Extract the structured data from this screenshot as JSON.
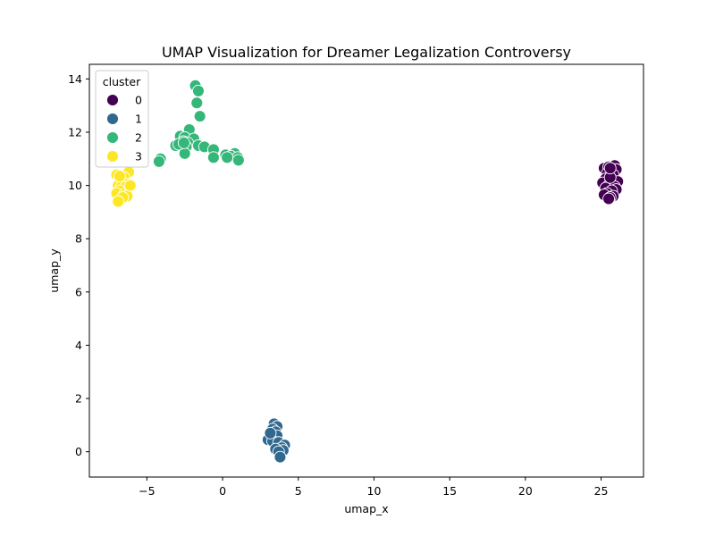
{
  "chart_data": {
    "type": "scatter",
    "title": "UMAP Visualization for Dreamer Legalization Controversy",
    "xlabel": "umap_x",
    "ylabel": "umap_y",
    "xlim": [
      -8.8,
      27.8
    ],
    "ylim": [
      -0.95,
      14.55
    ],
    "xticks": [
      -5,
      0,
      5,
      10,
      15,
      20,
      25
    ],
    "yticks": [
      0,
      2,
      4,
      6,
      8,
      10,
      12,
      14
    ],
    "xtick_labels": [
      "−5",
      "0",
      "5",
      "10",
      "15",
      "20",
      "25"
    ],
    "ytick_labels": [
      "0",
      "2",
      "4",
      "6",
      "8",
      "10",
      "12",
      "14"
    ],
    "grid": false,
    "legend": {
      "title": "cluster",
      "placement": "top-left"
    },
    "series": [
      {
        "name": "0",
        "color": "#440154",
        "points": [
          [
            25.2,
            10.65
          ],
          [
            25.5,
            10.7
          ],
          [
            25.9,
            10.75
          ],
          [
            25.7,
            10.55
          ],
          [
            26.0,
            10.6
          ],
          [
            25.4,
            10.45
          ],
          [
            25.8,
            10.4
          ],
          [
            25.3,
            10.25
          ],
          [
            25.6,
            10.2
          ],
          [
            26.1,
            10.15
          ],
          [
            25.1,
            10.1
          ],
          [
            25.5,
            10.0
          ],
          [
            25.9,
            9.95
          ],
          [
            25.3,
            9.9
          ],
          [
            26.0,
            9.85
          ],
          [
            25.7,
            9.8
          ],
          [
            25.4,
            9.7
          ],
          [
            25.2,
            9.65
          ],
          [
            25.8,
            9.6
          ],
          [
            25.6,
            9.55
          ],
          [
            25.5,
            9.5
          ],
          [
            25.6,
            10.3
          ],
          [
            25.6,
            10.65
          ]
        ]
      },
      {
        "name": "1",
        "color": "#31688e",
        "points": [
          [
            3.4,
            1.05
          ],
          [
            3.6,
            0.95
          ],
          [
            3.3,
            0.85
          ],
          [
            3.5,
            0.75
          ],
          [
            3.2,
            0.65
          ],
          [
            3.6,
            0.6
          ],
          [
            3.0,
            0.45
          ],
          [
            3.3,
            0.4
          ],
          [
            3.7,
            0.35
          ],
          [
            4.1,
            0.25
          ],
          [
            3.9,
            0.15
          ],
          [
            3.5,
            0.1
          ],
          [
            4.0,
            0.05
          ],
          [
            3.7,
            0.0
          ],
          [
            3.8,
            -0.2
          ],
          [
            3.15,
            0.7
          ]
        ]
      },
      {
        "name": "2",
        "color": "#35b779",
        "points": [
          [
            -1.8,
            13.75
          ],
          [
            -1.6,
            13.55
          ],
          [
            -1.7,
            13.1
          ],
          [
            -1.5,
            12.6
          ],
          [
            -2.2,
            12.1
          ],
          [
            -2.8,
            11.85
          ],
          [
            -2.5,
            11.8
          ],
          [
            -1.9,
            11.75
          ],
          [
            -2.6,
            11.65
          ],
          [
            -2.3,
            11.6
          ],
          [
            -3.1,
            11.5
          ],
          [
            -1.6,
            11.5
          ],
          [
            -2.7,
            11.5
          ],
          [
            -1.2,
            11.45
          ],
          [
            -2.4,
            11.45
          ],
          [
            -0.6,
            11.35
          ],
          [
            -2.5,
            11.2
          ],
          [
            0.8,
            11.2
          ],
          [
            0.2,
            11.15
          ],
          [
            0.55,
            11.1
          ],
          [
            1.0,
            11.05
          ],
          [
            0.3,
            11.05
          ],
          [
            -0.6,
            11.05
          ],
          [
            1.05,
            10.95
          ],
          [
            -4.1,
            11.0
          ],
          [
            -4.2,
            10.9
          ],
          [
            -2.9,
            11.55
          ],
          [
            -2.55,
            11.6
          ]
        ]
      },
      {
        "name": "3",
        "color": "#fde725",
        "points": [
          [
            -7.0,
            10.4
          ],
          [
            -6.2,
            10.5
          ],
          [
            -6.8,
            10.3
          ],
          [
            -6.5,
            10.3
          ],
          [
            -6.6,
            10.1
          ],
          [
            -6.3,
            10.05
          ],
          [
            -6.9,
            10.0
          ],
          [
            -6.7,
            9.95
          ],
          [
            -6.4,
            9.95
          ],
          [
            -6.8,
            9.8
          ],
          [
            -7.0,
            9.7
          ],
          [
            -6.5,
            9.65
          ],
          [
            -6.3,
            9.6
          ],
          [
            -6.6,
            9.55
          ],
          [
            -6.9,
            9.4
          ],
          [
            -6.8,
            10.35
          ],
          [
            -6.1,
            10.0
          ]
        ]
      }
    ]
  }
}
